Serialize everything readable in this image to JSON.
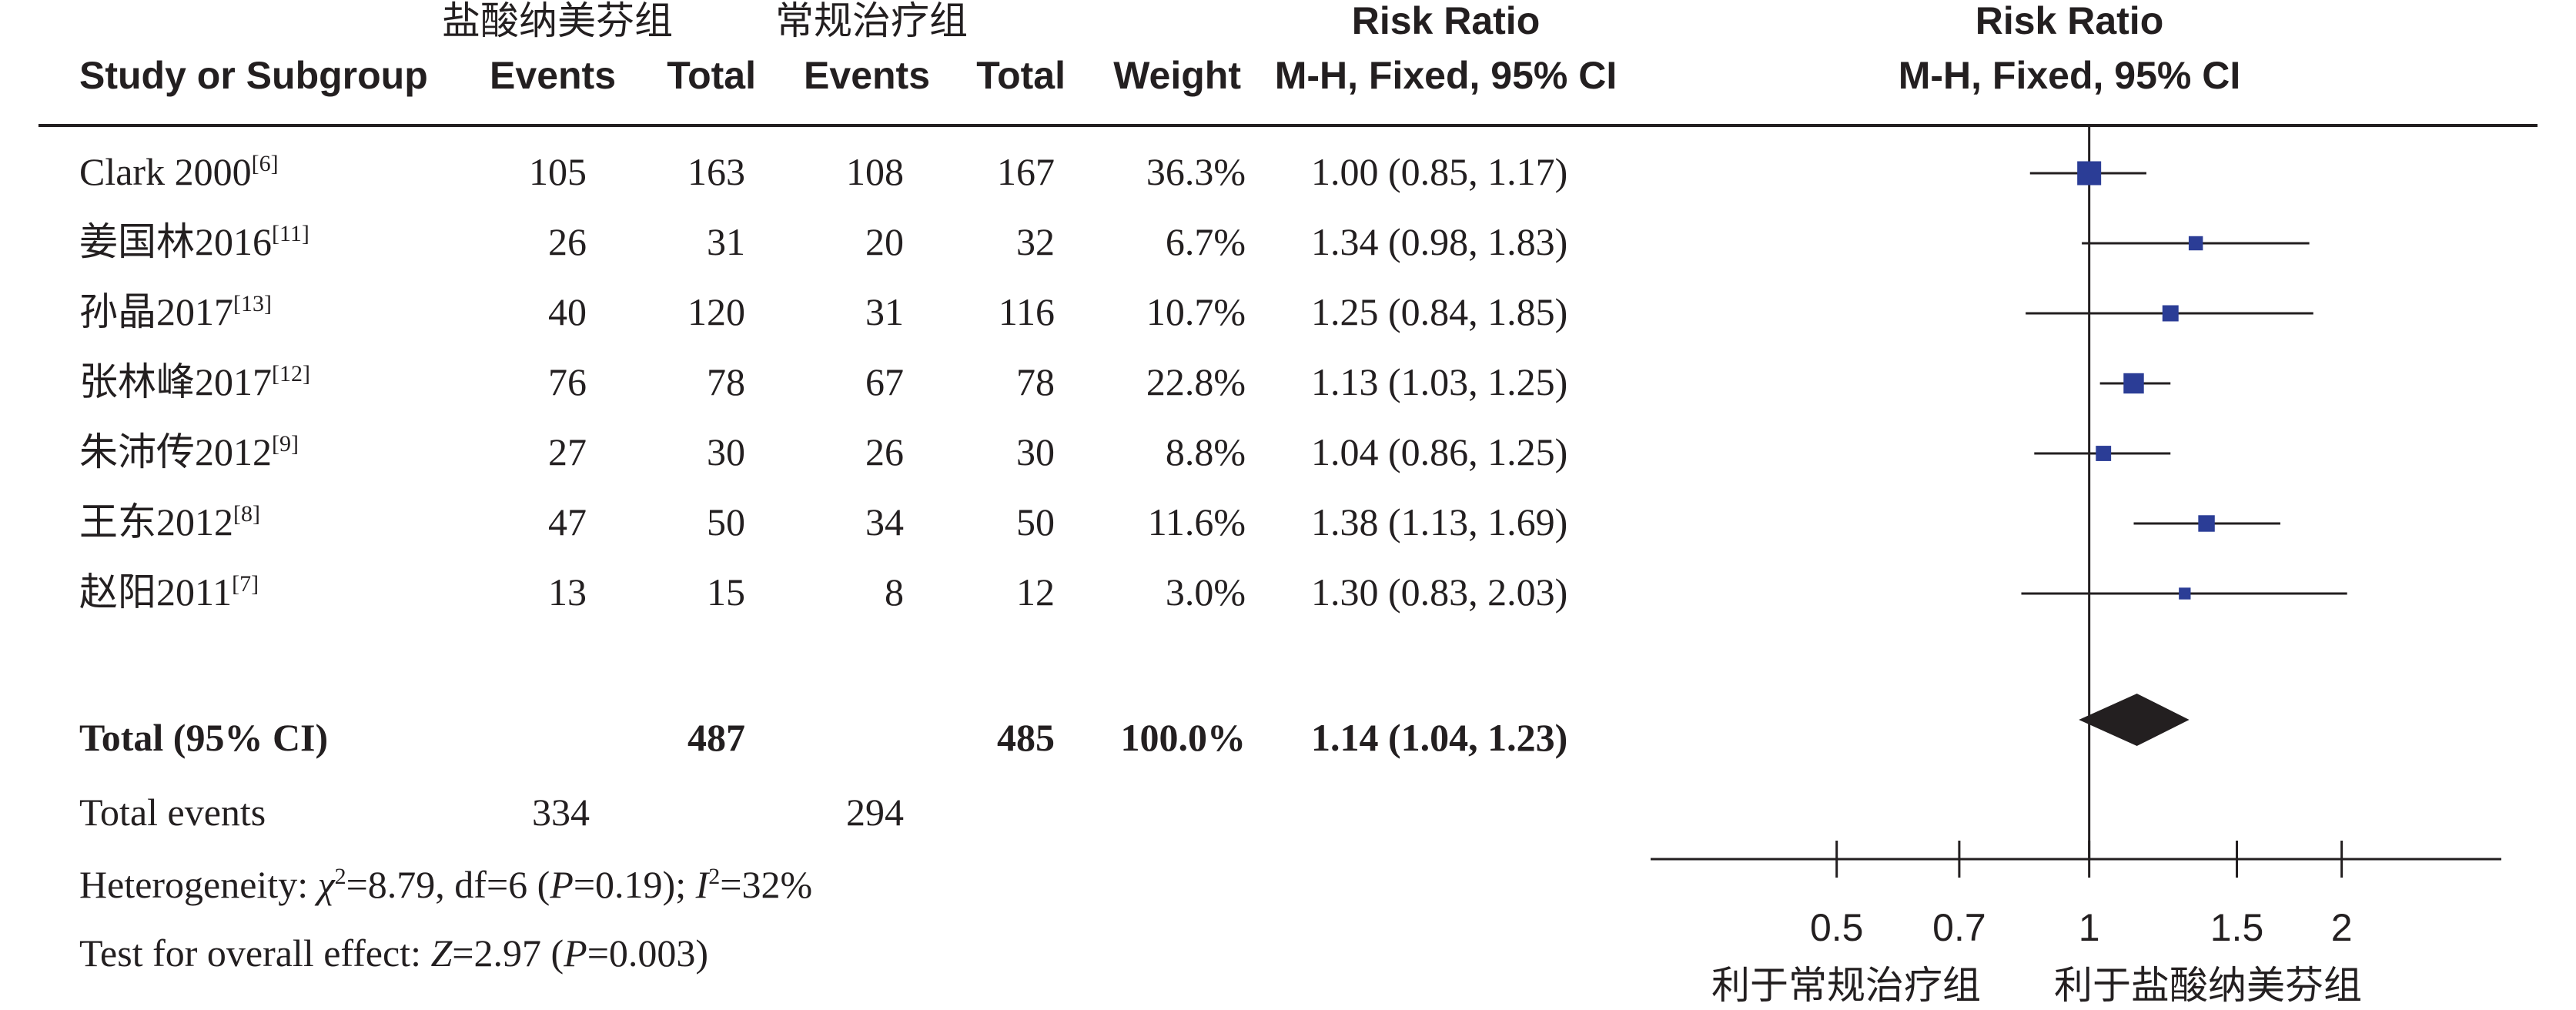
{
  "header": {
    "study_col": "Study or Subgroup",
    "group1_name": "盐酸纳美芬组",
    "group2_name": "常规治疗组",
    "events_label": "Events",
    "total_label": "Total",
    "weight_label": "Weight",
    "rr_title": "Risk Ratio",
    "rr_method": "M-H, Fixed, 95% CI",
    "plot_title": "Risk Ratio",
    "plot_method": "M-H, Fixed, 95% CI"
  },
  "studies": [
    {
      "name": "Clark 2000",
      "ref": "[6]",
      "e1": "105",
      "t1": "163",
      "e2": "108",
      "t2": "167",
      "weight": "36.3%",
      "ci_text": "1.00 (0.85, 1.17)"
    },
    {
      "name": "姜国林2016",
      "ref": "[11]",
      "e1": "26",
      "t1": "31",
      "e2": "20",
      "t2": "32",
      "weight": "6.7%",
      "ci_text": "1.34 (0.98, 1.83)"
    },
    {
      "name": "孙晶2017",
      "ref": "[13]",
      "e1": "40",
      "t1": "120",
      "e2": "31",
      "t2": "116",
      "weight": "10.7%",
      "ci_text": "1.25 (0.84, 1.85)"
    },
    {
      "name": "张林峰2017",
      "ref": "[12]",
      "e1": "76",
      "t1": "78",
      "e2": "67",
      "t2": "78",
      "weight": "22.8%",
      "ci_text": "1.13 (1.03, 1.25)"
    },
    {
      "name": "朱沛传2012",
      "ref": "[9]",
      "e1": "27",
      "t1": "30",
      "e2": "26",
      "t2": "30",
      "weight": "8.8%",
      "ci_text": "1.04 (0.86, 1.25)"
    },
    {
      "name": "王东2012",
      "ref": "[8]",
      "e1": "47",
      "t1": "50",
      "e2": "34",
      "t2": "50",
      "weight": "11.6%",
      "ci_text": "1.38 (1.13, 1.69)"
    },
    {
      "name": "赵阳2011",
      "ref": "[7]",
      "e1": "13",
      "t1": "15",
      "e2": "8",
      "t2": "12",
      "weight": "3.0%",
      "ci_text": "1.30 (0.83, 2.03)"
    }
  ],
  "total": {
    "label": "Total (95% CI)",
    "t1": "487",
    "t2": "485",
    "weight": "100.0%",
    "ci_text": "1.14 (1.04, 1.23)"
  },
  "total_events": {
    "label": "Total events",
    "e1": "334",
    "e2": "294"
  },
  "heterogeneity": {
    "lead": "Heterogeneity: ",
    "chi": "χ",
    "chi_stat": "=8.79, df=6 (",
    "p": "P",
    "p_value": "=0.19); ",
    "i": "I",
    "i_stat": "=32%",
    "sup2": "2"
  },
  "overall": {
    "lead": "Test for overall effect: ",
    "z": "Z",
    "z_value": "=2.97 (",
    "p": "P",
    "p_value": "=0.003)"
  },
  "chart_data": {
    "type": "forest",
    "x_scale": "log",
    "xlim": [
      0.3,
      3.1
    ],
    "x_ticks": [
      {
        "value": 0.5,
        "label": "0.5"
      },
      {
        "value": 0.7,
        "label": "0.7"
      },
      {
        "value": 1,
        "label": "1"
      },
      {
        "value": 1.5,
        "label": "1.5"
      },
      {
        "value": 2,
        "label": "2"
      }
    ],
    "null_value": 1,
    "favours_left": "利于常规治疗组",
    "favours_right": "利于盐酸纳美芬组",
    "marker_color": "#2b3d96",
    "diamond_color": "#231f20",
    "points": [
      {
        "study": "Clark 2000",
        "rr": 1.0,
        "lo": 0.85,
        "hi": 1.17,
        "weight": 36.3
      },
      {
        "study": "姜国林2016",
        "rr": 1.34,
        "lo": 0.98,
        "hi": 1.83,
        "weight": 6.7
      },
      {
        "study": "孙晶2017",
        "rr": 1.25,
        "lo": 0.84,
        "hi": 1.85,
        "weight": 10.7
      },
      {
        "study": "张林峰2017",
        "rr": 1.13,
        "lo": 1.03,
        "hi": 1.25,
        "weight": 22.8
      },
      {
        "study": "朱沛传2012",
        "rr": 1.04,
        "lo": 0.86,
        "hi": 1.25,
        "weight": 8.8
      },
      {
        "study": "王东2012",
        "rr": 1.38,
        "lo": 1.13,
        "hi": 1.69,
        "weight": 11.6
      },
      {
        "study": "赵阳2011",
        "rr": 1.3,
        "lo": 0.83,
        "hi": 2.03,
        "weight": 3.0
      }
    ],
    "pooled": {
      "rr": 1.14,
      "lo": 1.04,
      "hi": 1.23
    }
  }
}
